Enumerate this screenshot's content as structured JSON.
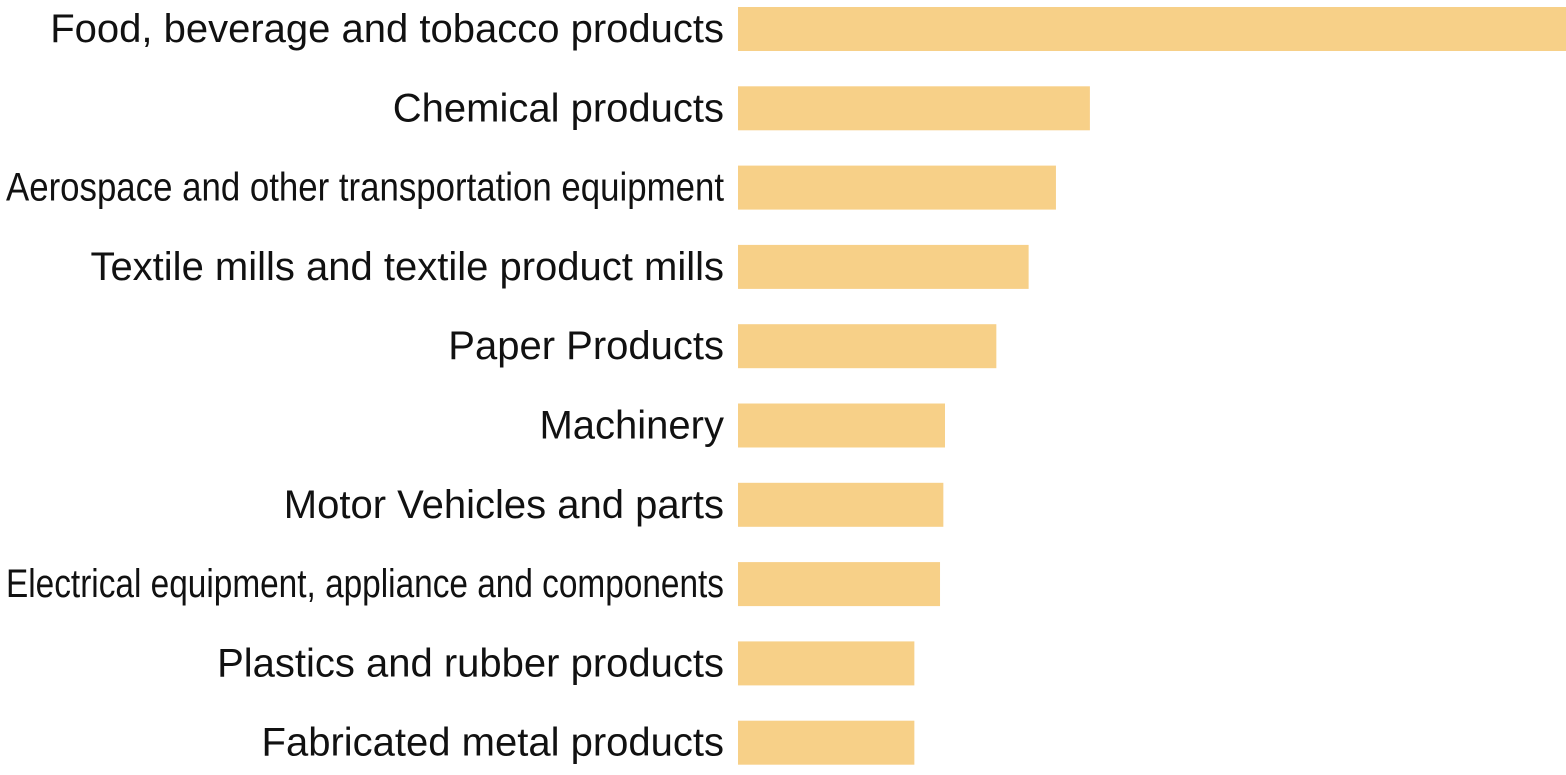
{
  "chart_data": {
    "type": "bar",
    "orientation": "horizontal",
    "title": "",
    "xlabel": "",
    "ylabel": "",
    "categories": [
      "Food, beverage and tobacco products",
      "Chemical products",
      "Aerospace and other transportation equipment",
      "Textile mills and textile product mills",
      "Paper Products",
      "Machinery",
      "Motor Vehicles and parts",
      "Electrical equipment, appliance and components",
      "Plastics and rubber products",
      "Fabricated metal products"
    ],
    "values": [
      100,
      42.5,
      38.4,
      35.1,
      31.2,
      25,
      24.8,
      24.4,
      21.3,
      21.3
    ],
    "xlim": [
      0,
      100
    ],
    "grid": false,
    "legend": "none",
    "colors": {
      "bar": "#f7d088",
      "label": "#111111",
      "background": "#ffffff"
    }
  }
}
